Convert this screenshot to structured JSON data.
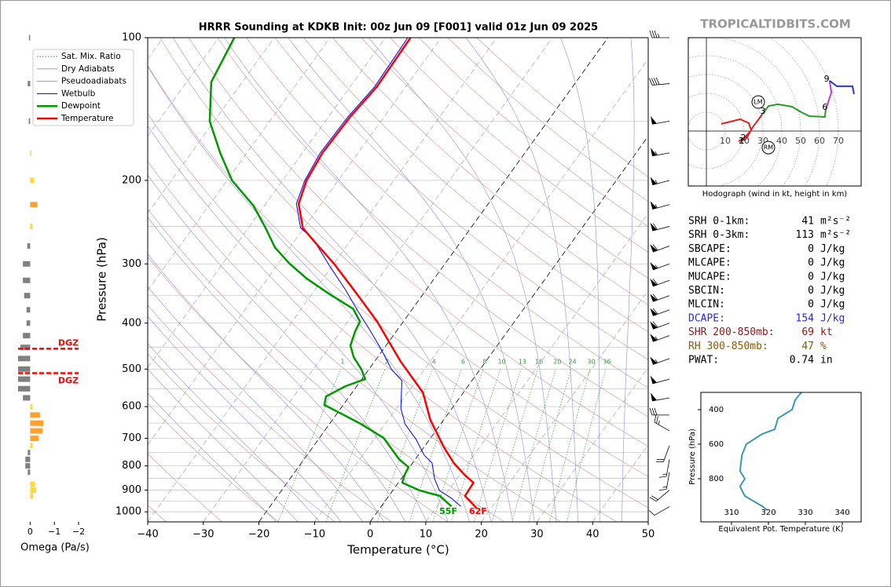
{
  "watermark": "TROPICALTIDBITS.COM",
  "stats": [
    {
      "label": "SRH 0-1km:",
      "value": 41,
      "unit": "m²s⁻²",
      "color": "#000000"
    },
    {
      "label": "SRH 0-3km:",
      "value": 113,
      "unit": "m²s⁻²",
      "color": "#000000"
    },
    {
      "label": "SBCAPE:",
      "value": 0,
      "unit": "J/kg",
      "color": "#000000"
    },
    {
      "label": "MLCAPE:",
      "value": 0,
      "unit": "J/kg",
      "color": "#000000"
    },
    {
      "label": "MUCAPE:",
      "value": 0,
      "unit": "J/kg",
      "color": "#000000"
    },
    {
      "label": "SBCIN:",
      "value": 0,
      "unit": "J/kg",
      "color": "#000000"
    },
    {
      "label": "MLCIN:",
      "value": 0,
      "unit": "J/kg",
      "color": "#000000"
    },
    {
      "label": "DCAPE:",
      "value": 154,
      "unit": "J/kg",
      "color": "#2a2ad0"
    },
    {
      "label": "SHR 200-850mb:",
      "value": 69,
      "unit": "kt",
      "color": "#8b1a1a"
    },
    {
      "label": "RH 300-850mb:",
      "value": 47,
      "unit": "%",
      "color": "#8b5a00"
    },
    {
      "label": "PWAT:",
      "value": 0.74,
      "unit": "in",
      "color": "#000000"
    }
  ],
  "chart_data": [
    {
      "type": "skewt",
      "title": "HRRR Sounding at KDKB Init: 00z Jun 09 [F001] valid 01z Jun 09 2025",
      "xlabel": "Temperature (°C)",
      "ylabel": "Pressure (hPa)",
      "xlim": [
        -40,
        50
      ],
      "xticks": [
        {
          "value": -40,
          "label": "−40"
        },
        {
          "value": -30,
          "label": "−30"
        },
        {
          "value": -20,
          "label": "−20"
        },
        {
          "value": -10,
          "label": "−10"
        },
        0,
        10,
        20,
        30,
        40,
        50
      ],
      "ylim": [
        1050,
        100
      ],
      "log_y": true,
      "yticks": [
        100,
        200,
        300,
        400,
        500,
        600,
        700,
        800,
        900,
        1000
      ],
      "minor_yticks": [
        150,
        250,
        350,
        450,
        550,
        650,
        750,
        850,
        950
      ],
      "reference_lines": [
        {
          "name": "Sat. Mix. Ratio",
          "color": "#3a9a3a",
          "labels": [
            1,
            2,
            4,
            6,
            8,
            10,
            13,
            16,
            20,
            24,
            30,
            36
          ]
        },
        {
          "name": "Dry Adiabats",
          "color": "#d49090"
        },
        {
          "name": "Pseudoadiabats",
          "color": "#9090d8"
        }
      ],
      "series": [
        {
          "name": "Wetbulb",
          "color": "#0000ee",
          "pressure": [
            974,
            937,
            902,
            852,
            789,
            760,
            704,
            653,
            605,
            529,
            500,
            454,
            413,
            376,
            341,
            304,
            266,
            252,
            224,
            200,
            175,
            147,
            127,
            100
          ],
          "values": [
            14.3,
            11.6,
            8.4,
            6,
            3.5,
            1.1,
            -2.4,
            -6.4,
            -9.2,
            -12.6,
            -16,
            -20.4,
            -25,
            -29.7,
            -34.4,
            -40.3,
            -46.9,
            -50.6,
            -54.5,
            -56,
            -56.8,
            -56.5,
            -55.6,
            -56
          ]
        },
        {
          "name": "Dewpoint",
          "color": "#009900",
          "pressure": [
            974,
            926,
            902,
            868,
            836,
            805,
            775,
            698,
            653,
            628,
            595,
            571,
            543,
            525,
            500,
            472,
            446,
            416,
            397,
            373,
            348,
            322,
            299,
            277,
            252,
            226,
            200,
            175,
            150,
            124,
            100
          ],
          "values": [
            12.6,
            9.2,
            4.9,
            0.7,
            0.1,
            -0.2,
            -2.9,
            -8.5,
            -14.3,
            -18.1,
            -23.4,
            -24.2,
            -22,
            -19.4,
            -21.4,
            -24.3,
            -26.4,
            -27.4,
            -27.8,
            -30.7,
            -36.7,
            -43,
            -48.1,
            -52.7,
            -56.9,
            -62,
            -69.1,
            -74.8,
            -80.8,
            -85.6,
            -87.2
          ]
        },
        {
          "name": "Temperature",
          "color": "#ff0000",
          "pressure": [
            981,
            926,
            868,
            836,
            789,
            731,
            640,
            560,
            481,
            397,
            348,
            299,
            269,
            252,
            224,
            200,
            175,
            147,
            127,
            100
          ],
          "values": [
            17.3,
            13.7,
            13.5,
            10.9,
            7.4,
            3.6,
            -2.4,
            -7.3,
            -15.4,
            -24.7,
            -31.8,
            -40.1,
            -46.4,
            -50.2,
            -54.1,
            -55.7,
            -56.4,
            -56.1,
            -55.2,
            -55.5
          ]
        }
      ],
      "sfc_labels": [
        {
          "label": "55F",
          "color": "#009900"
        },
        {
          "label": "62F",
          "color": "#ff0000"
        }
      ],
      "winds": {
        "pressure": [
          100,
          125,
          150,
          175,
          200,
          225,
          250,
          275,
          300,
          325,
          350,
          375,
          400,
          425,
          475,
          525,
          575,
          625,
          675,
          725,
          775,
          825,
          900,
          975
        ],
        "speed": [
          35,
          40,
          50,
          55,
          55,
          55,
          60,
          60,
          55,
          60,
          60,
          60,
          60,
          55,
          55,
          50,
          50,
          30,
          25,
          20,
          15,
          15,
          20,
          10
        ],
        "direction": [
          270,
          265,
          260,
          260,
          255,
          255,
          255,
          250,
          250,
          250,
          250,
          250,
          250,
          250,
          250,
          255,
          260,
          270,
          300,
          200,
          190,
          190,
          230,
          240
        ]
      }
    },
    {
      "type": "omega",
      "xlabel": "Omega (Pa/s)",
      "xlim": [
        0.5,
        -2
      ],
      "xticks": [
        0,
        {
          "value": -1,
          "label": "−1"
        },
        {
          "value": -2,
          "label": "−2"
        }
      ],
      "ylim": [
        1050,
        100
      ],
      "pressure": [
        100,
        125,
        150,
        175,
        200,
        225,
        250,
        275,
        300,
        325,
        350,
        375,
        400,
        425,
        450,
        475,
        500,
        525,
        550,
        575,
        600,
        625,
        650,
        675,
        700,
        725,
        750,
        775,
        800,
        825,
        875,
        900,
        925
      ],
      "values": [
        0.05,
        0.1,
        0.06,
        -0.05,
        -0.15,
        -0.3,
        -0.1,
        0.12,
        0.3,
        0.3,
        0.25,
        0.15,
        0.15,
        0.3,
        0.4,
        0.5,
        0.5,
        0.5,
        0.5,
        0.3,
        -0.1,
        -0.4,
        -0.55,
        -0.52,
        -0.35,
        -0.1,
        0.1,
        0.2,
        0.2,
        0.1,
        -0.2,
        -0.25,
        -0.12
      ],
      "dgz": {
        "pressure": [
          453,
          510
        ],
        "labels": [
          "DGZ",
          "DGZ"
        ],
        "color": "#ff0000"
      }
    },
    {
      "type": "hodograph",
      "caption": "Hodograph (wind in kt, height in km)",
      "xlim": [
        -9.6,
        82.1
      ],
      "ylim": [
        -29.2,
        49.6
      ],
      "ring_ticks": [
        10,
        20,
        30,
        40,
        50,
        60,
        70
      ],
      "series": [
        {
          "color": "#e02020",
          "u": [
            7.9,
            17.9,
            22.5,
            23.8,
            20,
            17.1,
            21.3,
            24.6,
            29.6
          ],
          "v": [
            3.8,
            6.3,
            4.2,
            0.4,
            -3.8,
            -5.4,
            -3.8,
            2.1,
            8.8
          ]
        },
        {
          "color": "#2a9a2a",
          "u": [
            29.6,
            32.9,
            37.9,
            45.4,
            50.4,
            54.6,
            62.9,
            63.3
          ],
          "v": [
            8.8,
            13.3,
            14.2,
            12.9,
            10,
            7.9,
            7.5,
            11.3
          ]
        },
        {
          "color": "#c040c0",
          "u": [
            63.3,
            66.3,
            65.4
          ],
          "v": [
            11.3,
            20.4,
            26.7
          ]
        },
        {
          "color": "#3030e0",
          "u": [
            65.4,
            69.2,
            77.5,
            78.3
          ],
          "v": [
            26.7,
            23.8,
            23.8,
            19.6
          ]
        }
      ],
      "height_labels": {
        "heights": [
          1,
          2,
          3,
          6,
          9
        ],
        "u": [
          18.8,
          19.6,
          30,
          62.9,
          63.8
        ],
        "v": [
          -5.4,
          -3.8,
          10.4,
          12.5,
          27.5
        ]
      },
      "storm_motion": [
        {
          "label": "LM",
          "u": 27.5,
          "v": 15.4
        },
        {
          "label": "RM",
          "u": 32.9,
          "v": -8.8
        }
      ]
    },
    {
      "type": "line",
      "xlabel": "Equivalent Pot. Temperature (K)",
      "ylabel": "Pressure (hPa)",
      "xlim": [
        301.7,
        345.1
      ],
      "xticks": [
        310,
        320,
        330,
        340
      ],
      "ylim": [
        1050,
        300
      ],
      "yticks": [
        400,
        600,
        800
      ],
      "series": [
        {
          "color": "#3a9ab0",
          "pressure": [
            300,
            345,
            400,
            450,
            514,
            541,
            600,
            664,
            755,
            800,
            845,
            900,
            959,
            982
          ],
          "values": [
            328.9,
            327.2,
            326.4,
            322.6,
            321.7,
            318.3,
            314,
            312.8,
            312.3,
            313.6,
            312.3,
            313.6,
            318.3,
            319.6
          ]
        }
      ]
    }
  ]
}
